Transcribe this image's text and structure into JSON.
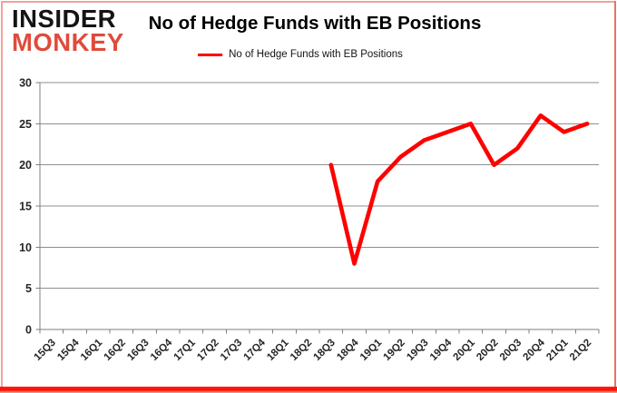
{
  "logo": {
    "line1": "INSIDER",
    "line2": "MONKEY",
    "line1_color": "#141414",
    "line2_color": "#df4b3b"
  },
  "title": "No of Hedge Funds with EB Positions",
  "legend": {
    "label": "No of Hedge Funds with EB Positions",
    "line_color": "#ff0000"
  },
  "chart_data": {
    "type": "line",
    "title": "No of Hedge Funds with EB Positions",
    "categories": [
      "15Q3",
      "15Q4",
      "16Q1",
      "16Q2",
      "16Q3",
      "16Q4",
      "17Q1",
      "17Q2",
      "17Q3",
      "17Q4",
      "18Q1",
      "18Q2",
      "18Q3",
      "18Q4",
      "19Q1",
      "19Q2",
      "19Q3",
      "19Q4",
      "20Q1",
      "20Q2",
      "20Q3",
      "20Q4",
      "21Q1",
      "21Q2"
    ],
    "series": [
      {
        "name": "No of Hedge Funds with EB Positions",
        "color": "#ff0000",
        "values": [
          null,
          null,
          null,
          null,
          null,
          null,
          null,
          null,
          null,
          null,
          null,
          null,
          20,
          8,
          18,
          21,
          23,
          24,
          25,
          20,
          22,
          26,
          24,
          25
        ]
      }
    ],
    "ylim": [
      0,
      30
    ],
    "yticks": [
      0,
      5,
      10,
      15,
      20,
      25,
      30
    ],
    "grid": true,
    "legend_position": "top-center",
    "grid_color": "#8f8f8f",
    "axis_color": "#7f7f7f",
    "tick_label_color": "#262626"
  }
}
